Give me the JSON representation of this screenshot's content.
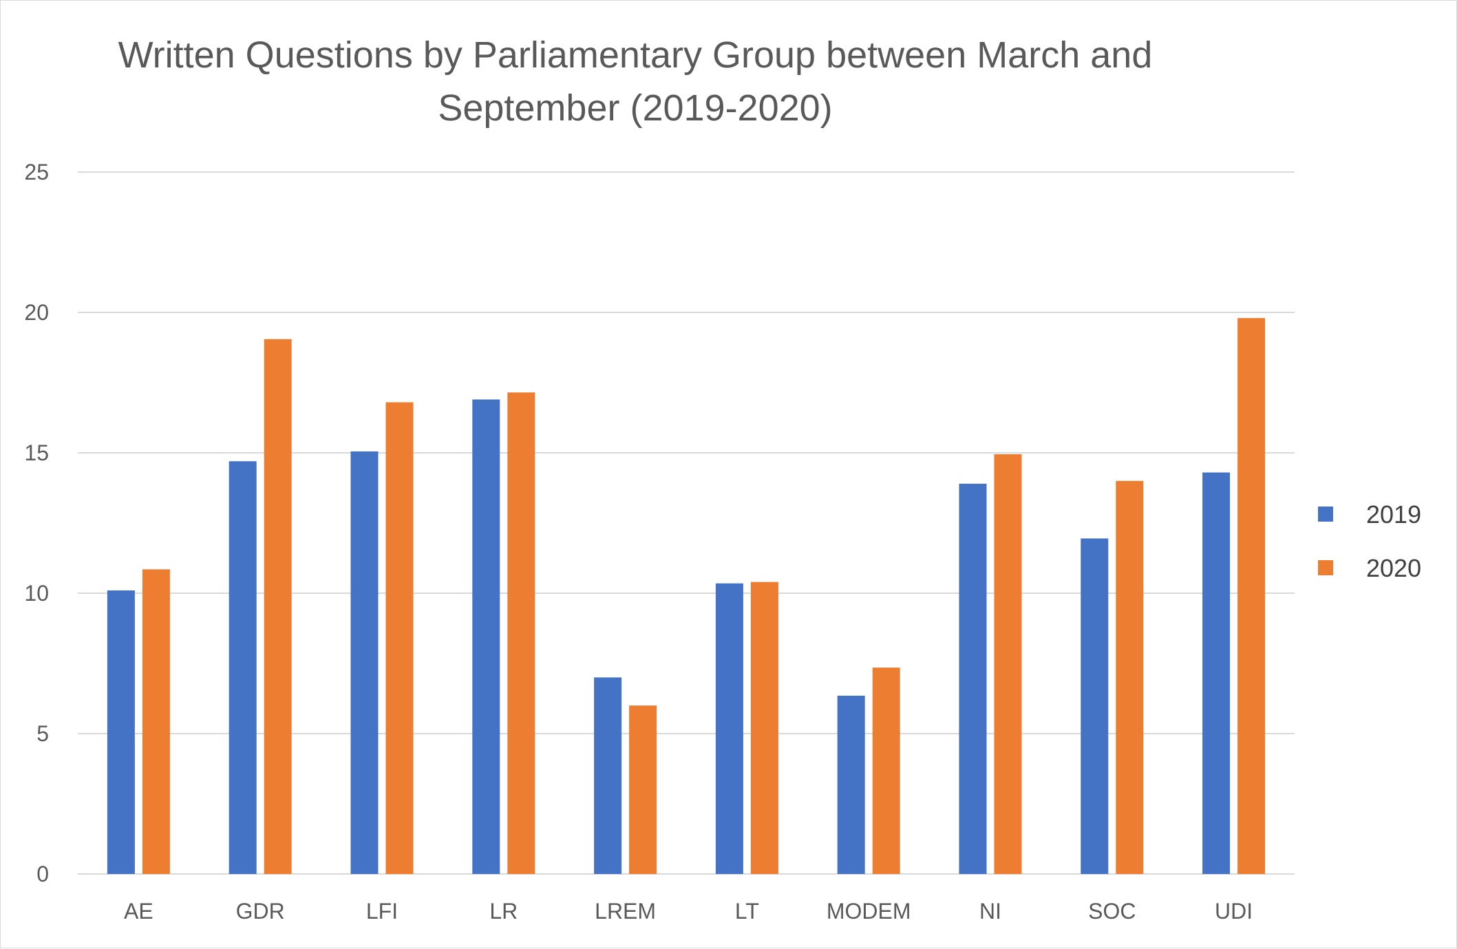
{
  "chart_data": {
    "type": "bar",
    "title_lines": [
      "Written Questions by Parliamentary Group between March and",
      "September (2019-2020)"
    ],
    "categories": [
      "AE",
      "GDR",
      "LFI",
      "LR",
      "LREM",
      "LT",
      "MODEM",
      "NI",
      "SOC",
      "UDI"
    ],
    "series": [
      {
        "name": "2019",
        "color": "#4472c4",
        "values": [
          10.1,
          14.7,
          15.05,
          16.9,
          7.0,
          10.35,
          6.35,
          13.9,
          11.95,
          14.3
        ]
      },
      {
        "name": "2020",
        "color": "#ed7d31",
        "values": [
          10.85,
          19.05,
          16.8,
          17.15,
          6.0,
          10.4,
          7.35,
          14.95,
          14.0,
          19.8
        ]
      }
    ],
    "yticks": [
      0,
      5,
      10,
      15,
      20,
      25
    ],
    "ylim": [
      0,
      25
    ],
    "grid": true,
    "legend_position": "right"
  }
}
